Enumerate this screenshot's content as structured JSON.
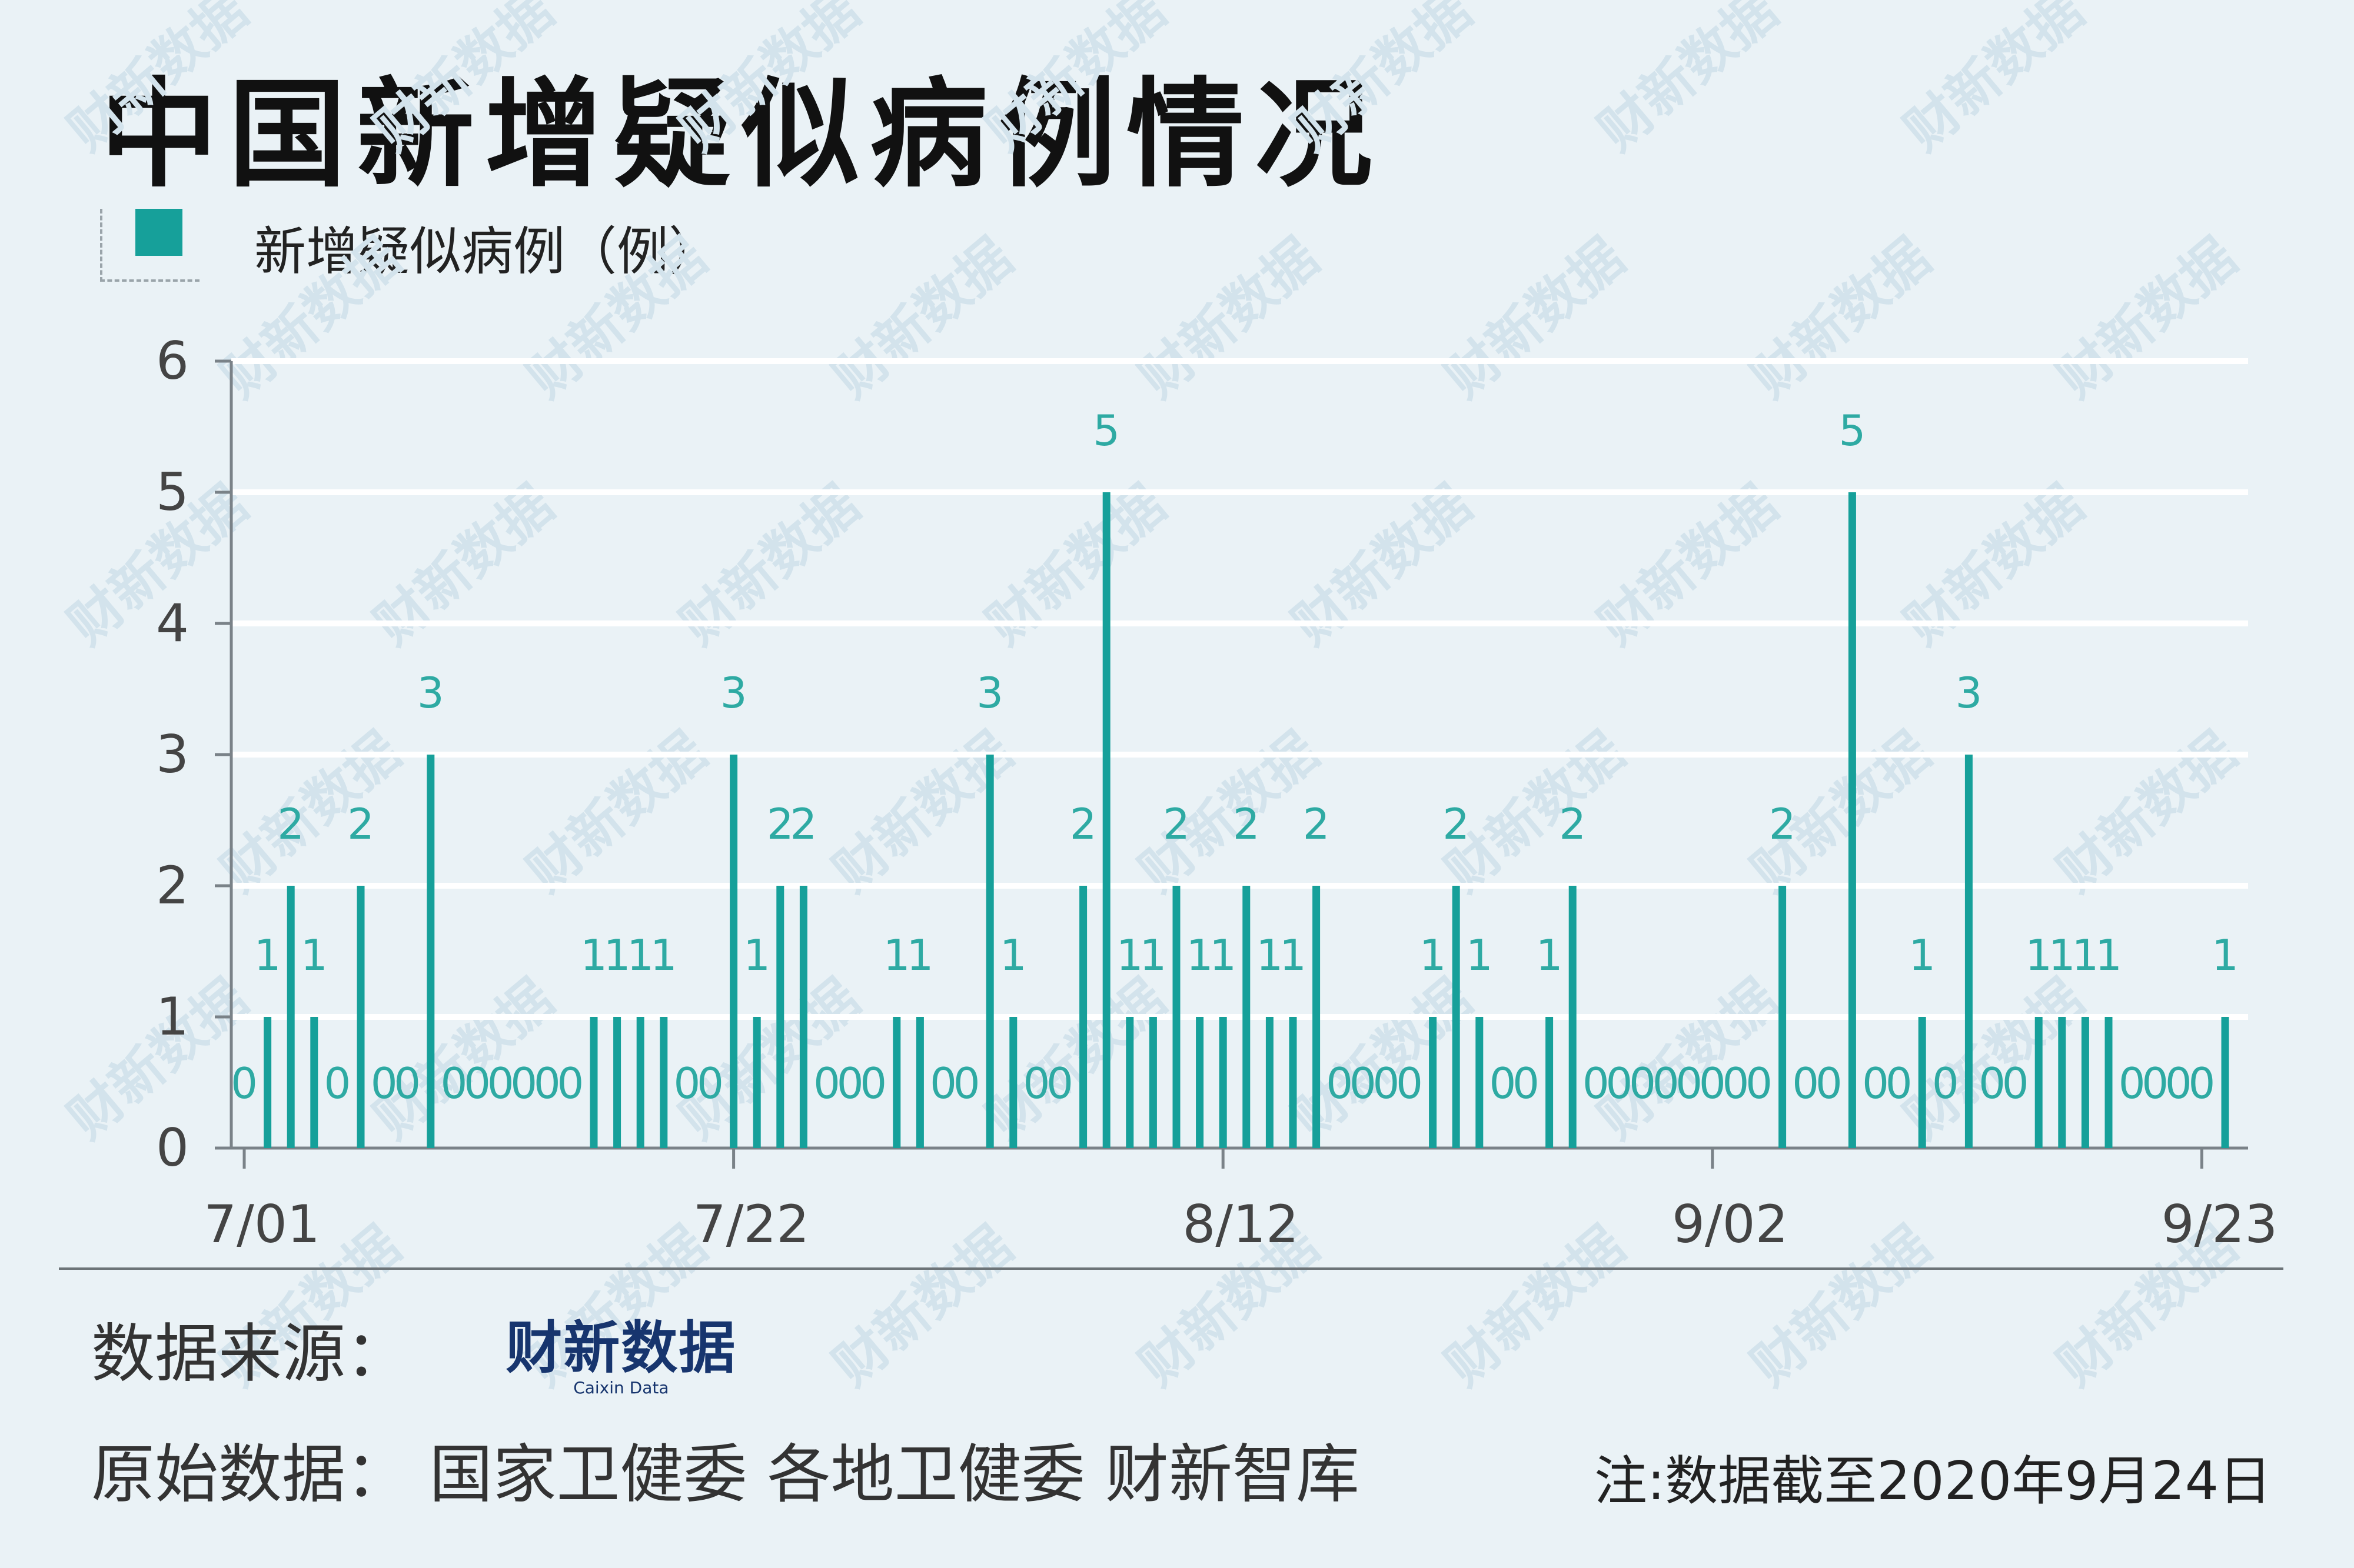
{
  "title": "中国新增疑似病例情况",
  "legend": {
    "label": "新增疑似病例（例）",
    "color": "#16a09a"
  },
  "chart_data": {
    "type": "bar",
    "title": "中国新增疑似病例情况",
    "series": [
      {
        "name": "新增疑似病例（例）",
        "values": [
          0,
          1,
          2,
          1,
          0,
          2,
          0,
          0,
          3,
          0,
          0,
          0,
          0,
          0,
          0,
          1,
          1,
          1,
          1,
          0,
          0,
          3,
          1,
          2,
          2,
          0,
          0,
          0,
          1,
          1,
          0,
          0,
          3,
          1,
          0,
          0,
          2,
          5,
          1,
          1,
          2,
          1,
          1,
          2,
          1,
          1,
          2,
          0,
          0,
          0,
          0,
          1,
          2,
          1,
          0,
          0,
          1,
          2,
          0,
          0,
          0,
          0,
          0,
          0,
          0,
          0,
          2,
          0,
          0,
          5,
          0,
          0,
          1,
          0,
          3,
          0,
          0,
          1,
          1,
          1,
          1,
          0,
          0,
          0,
          0,
          1
        ]
      }
    ],
    "start_date": "2020-07-01",
    "tick_labels": [
      "7/01",
      "7/22",
      "8/12",
      "9/02",
      "9/23"
    ],
    "tick_day_index": [
      0,
      21,
      42,
      63,
      84
    ],
    "ylim": [
      0,
      6
    ],
    "yticks": [
      0,
      1,
      2,
      3,
      4,
      5,
      6
    ],
    "grid": true,
    "show_data_labels": true,
    "color": "#16a09a",
    "label_color": "#2eaaa3"
  },
  "footer": {
    "source_label": "数据来源：",
    "source_logo": "财新数据",
    "source_logo_sub": "Caixin Data",
    "raw_data": "原始数据：  国家卫健委  各地卫健委  财新智库",
    "note": "注:数据截至2020年9月24日"
  },
  "watermark": "财新数据"
}
